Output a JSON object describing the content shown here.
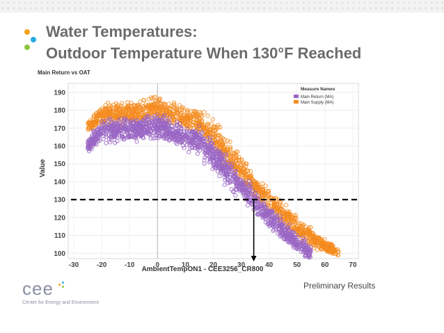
{
  "slide": {
    "title_line1": "Water Temperatures:",
    "title_line2": "Outdoor Temperature When 130°F Reached",
    "footnote": "Preliminary Results",
    "logo_word": "cee",
    "logo_subtitle": "Center for Energy and Environment",
    "bullet_colors": [
      "#f6a21e",
      "#29abe2",
      "#8cc63f"
    ]
  },
  "chart_data": {
    "type": "scatter",
    "title": "Main Return vs OAT",
    "xlabel": "AmbientTempON1 - CEE3256_CR800",
    "ylabel": "Value",
    "xlim": [
      -32,
      72
    ],
    "ylim": [
      97,
      195
    ],
    "x_ticks": [
      -30,
      -20,
      -10,
      0,
      10,
      20,
      30,
      40,
      50,
      60,
      70
    ],
    "y_ticks": [
      100,
      110,
      120,
      130,
      140,
      150,
      160,
      170,
      180,
      190
    ],
    "grid": true,
    "legend": {
      "title": "Measure Names",
      "position": "top-right",
      "entries": [
        "Main Return (MA)",
        "Main Supply (MA)"
      ]
    },
    "series": [
      {
        "name": "Main Return (MA)",
        "color": "#9a66c4",
        "x": [
          -25,
          -20,
          -15,
          -10,
          -5,
          0,
          5,
          10,
          15,
          20,
          25,
          30,
          35,
          40,
          45,
          50,
          55
        ],
        "y": [
          160,
          168,
          169,
          169,
          170,
          171,
          168,
          165,
          162,
          155,
          146,
          137,
          129,
          121,
          113,
          106,
          100
        ],
        "spread": [
          3,
          5,
          5,
          5,
          5,
          5,
          5,
          5,
          6,
          6,
          6,
          5,
          5,
          5,
          4,
          4,
          3
        ]
      },
      {
        "name": "Main Supply (MA)",
        "color": "#f48b1f",
        "x": [
          -25,
          -20,
          -15,
          -10,
          -5,
          0,
          5,
          10,
          15,
          20,
          25,
          30,
          35,
          40,
          45,
          50,
          55,
          60,
          65
        ],
        "y": [
          171,
          177,
          178,
          178,
          179,
          181,
          178,
          175,
          173,
          166,
          156,
          146,
          137,
          129,
          122,
          115,
          109,
          104,
          100
        ],
        "spread": [
          2,
          5,
          5,
          5,
          5,
          5,
          5,
          5,
          5,
          6,
          6,
          6,
          5,
          5,
          5,
          4,
          4,
          3,
          2
        ]
      }
    ],
    "annotations": {
      "threshold_y": 130,
      "crossover_x": 34.5
    }
  }
}
